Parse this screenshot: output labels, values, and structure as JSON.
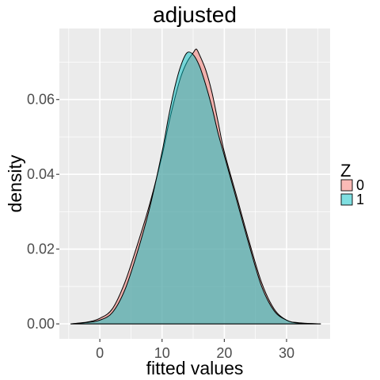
{
  "chart_data": {
    "type": "area",
    "title": "adjusted",
    "xlabel": "fitted values",
    "ylabel": "density",
    "xlim": [
      -6.5,
      37
    ],
    "ylim": [
      -0.004,
      0.079
    ],
    "x_ticks": [
      0,
      10,
      20,
      30
    ],
    "x_tick_labels": [
      "0",
      "10",
      "20",
      "30"
    ],
    "y_ticks": [
      0.0,
      0.02,
      0.04,
      0.06
    ],
    "y_tick_labels": [
      "0.00",
      "0.02",
      "0.04",
      "0.06"
    ],
    "grid": true,
    "legend": {
      "title": "Z",
      "position": "right"
    },
    "series": [
      {
        "name": "0",
        "color": "#F8766D",
        "x": [
          -4.7,
          -2,
          0,
          2,
          4,
          6,
          8,
          10,
          11,
          12,
          13,
          14,
          15,
          15.5,
          16,
          17,
          18,
          19,
          20,
          22,
          24,
          26,
          28,
          30,
          32,
          35.5
        ],
        "y": [
          0.0,
          0.0005,
          0.0015,
          0.004,
          0.011,
          0.021,
          0.032,
          0.045,
          0.053,
          0.06,
          0.066,
          0.07,
          0.0725,
          0.0735,
          0.072,
          0.068,
          0.062,
          0.054,
          0.046,
          0.034,
          0.022,
          0.011,
          0.004,
          0.001,
          0.0003,
          0.0
        ]
      },
      {
        "name": "1",
        "color": "#00BFC4",
        "x": [
          -4.7,
          -2,
          0,
          2,
          4,
          6,
          8,
          10,
          11,
          12,
          13,
          14,
          15,
          16,
          17,
          18,
          19,
          20,
          22,
          24,
          26,
          28,
          30,
          32,
          35.5
        ],
        "y": [
          0.0,
          0.0004,
          0.001,
          0.003,
          0.009,
          0.019,
          0.031,
          0.046,
          0.055,
          0.063,
          0.069,
          0.0725,
          0.072,
          0.069,
          0.064,
          0.058,
          0.051,
          0.045,
          0.033,
          0.021,
          0.01,
          0.0035,
          0.001,
          0.0002,
          0.0
        ]
      }
    ]
  }
}
